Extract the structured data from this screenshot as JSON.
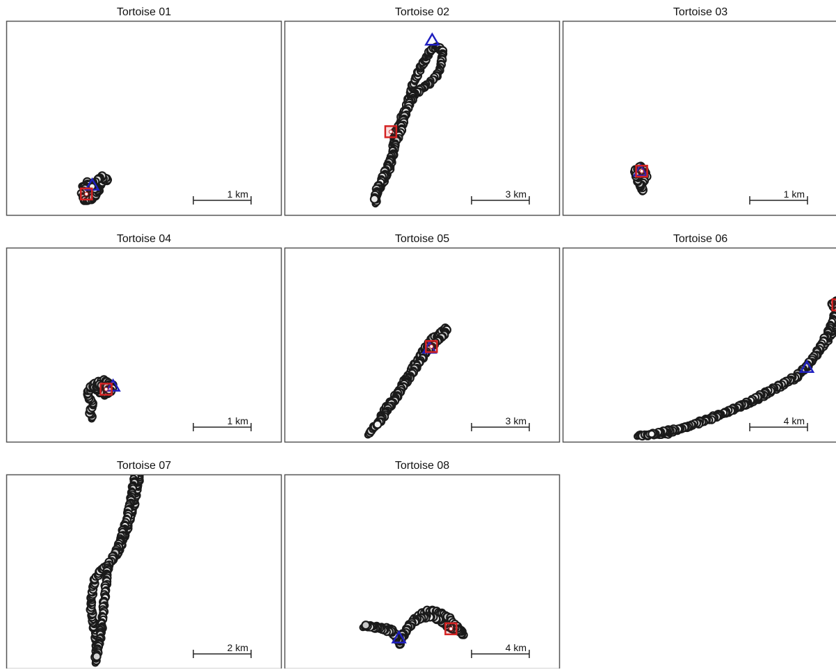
{
  "chart_data": [
    {
      "type": "scatter",
      "title": "Tortoise 01",
      "scalebar": {
        "label": "1 km",
        "km": 1
      },
      "start_marker": "triangle",
      "end_marker": "square",
      "path": [
        [
          -0.8,
          0.2
        ],
        [
          -0.7,
          0.1
        ],
        [
          -0.6,
          0.05
        ],
        [
          -0.5,
          0.12
        ],
        [
          -0.6,
          0.2
        ],
        [
          -0.72,
          0.26
        ],
        [
          -0.65,
          0.15
        ],
        [
          -0.55,
          0.1
        ],
        [
          -0.45,
          0.25
        ],
        [
          -0.35,
          0.3
        ],
        [
          -0.45,
          0.35
        ],
        [
          -0.6,
          0.25
        ],
        [
          -0.72,
          0.15
        ],
        [
          -0.8,
          0.05
        ],
        [
          -0.78,
          -0.05
        ],
        [
          -0.68,
          -0.08
        ],
        [
          -0.58,
          0.0
        ],
        [
          -0.5,
          0.1
        ],
        [
          -0.62,
          0.18
        ]
      ],
      "start": [
        -0.62,
        0.2
      ],
      "end": [
        -0.72,
        0.05
      ]
    },
    {
      "type": "scatter",
      "title": "Tortoise 02",
      "scalebar": {
        "label": "3 km",
        "km": 3
      },
      "start_marker": "triangle",
      "end_marker": "square",
      "path": [
        [
          0.1,
          0.3
        ],
        [
          0.2,
          0.8
        ],
        [
          0.45,
          1.3
        ],
        [
          0.7,
          1.8
        ],
        [
          0.9,
          2.3
        ],
        [
          1.0,
          2.8
        ],
        [
          1.05,
          3.3
        ],
        [
          1.1,
          3.8
        ],
        [
          1.3,
          4.3
        ],
        [
          1.5,
          4.8
        ],
        [
          1.7,
          5.3
        ],
        [
          1.85,
          5.8
        ],
        [
          2.0,
          6.3
        ],
        [
          2.2,
          6.8
        ],
        [
          2.4,
          7.2
        ],
        [
          2.6,
          7.6
        ],
        [
          2.8,
          7.95
        ],
        [
          3.0,
          8.2
        ],
        [
          3.2,
          8.4
        ],
        [
          3.45,
          8.35
        ],
        [
          3.6,
          8.1
        ],
        [
          3.55,
          7.7
        ],
        [
          3.45,
          7.3
        ],
        [
          3.3,
          6.9
        ],
        [
          3.0,
          6.6
        ],
        [
          2.6,
          6.3
        ],
        [
          2.1,
          5.9
        ],
        [
          1.8,
          5.3
        ],
        [
          1.6,
          4.7
        ],
        [
          1.45,
          4.1
        ],
        [
          1.2,
          3.5
        ],
        [
          0.9,
          2.6
        ],
        [
          0.5,
          1.7
        ],
        [
          0.2,
          1.0
        ],
        [
          0.05,
          0.5
        ]
      ],
      "start": [
        3.05,
        8.75
      ],
      "end": [
        0.9,
        4.0
      ]
    },
    {
      "type": "scatter",
      "title": "Tortoise 03",
      "scalebar": {
        "label": "1 km",
        "km": 1
      },
      "start_marker": "triangle",
      "end_marker": "square",
      "path": [
        [
          -0.88,
          0.4
        ],
        [
          -0.82,
          0.45
        ],
        [
          -0.75,
          0.38
        ],
        [
          -0.72,
          0.28
        ],
        [
          -0.8,
          0.22
        ],
        [
          -0.88,
          0.28
        ],
        [
          -0.92,
          0.36
        ],
        [
          -0.85,
          0.42
        ],
        [
          -0.78,
          0.32
        ],
        [
          -0.76,
          0.2
        ],
        [
          -0.8,
          0.1
        ],
        [
          -0.78,
          0.02
        ],
        [
          -0.84,
          0.14
        ],
        [
          -0.9,
          0.3
        ]
      ],
      "start": [
        -0.82,
        0.36
      ],
      "end": [
        -0.8,
        0.36
      ]
    },
    {
      "type": "scatter",
      "title": "Tortoise 04",
      "scalebar": {
        "label": "1 km",
        "km": 1
      },
      "start_marker": "triangle",
      "end_marker": "square",
      "path": [
        [
          -1.05,
          0.0
        ],
        [
          -1.08,
          0.12
        ],
        [
          -1.02,
          0.25
        ],
        [
          -1.1,
          0.35
        ],
        [
          -1.12,
          0.45
        ],
        [
          -1.05,
          0.55
        ],
        [
          -0.95,
          0.62
        ],
        [
          -0.85,
          0.65
        ],
        [
          -0.75,
          0.62
        ],
        [
          -0.68,
          0.55
        ],
        [
          -0.72,
          0.45
        ],
        [
          -0.82,
          0.4
        ],
        [
          -0.92,
          0.45
        ],
        [
          -1.0,
          0.52
        ],
        [
          -0.95,
          0.58
        ],
        [
          -0.8,
          0.55
        ],
        [
          -0.75,
          0.48
        ]
      ],
      "start": [
        -0.68,
        0.55
      ],
      "end": [
        -0.8,
        0.5
      ]
    },
    {
      "type": "scatter",
      "title": "Tortoise 05",
      "scalebar": {
        "label": "3 km",
        "km": 3
      },
      "start_marker": "triangle",
      "end_marker": "square",
      "path": [
        [
          0.0,
          0.0
        ],
        [
          0.3,
          0.3
        ],
        [
          0.6,
          0.7
        ],
        [
          0.8,
          1.1
        ],
        [
          1.0,
          1.4
        ],
        [
          1.3,
          1.8
        ],
        [
          1.6,
          2.2
        ],
        [
          1.8,
          2.6
        ],
        [
          2.0,
          2.9
        ],
        [
          2.2,
          3.2
        ],
        [
          2.4,
          3.6
        ],
        [
          2.6,
          3.9
        ],
        [
          2.8,
          4.2
        ],
        [
          3.0,
          4.5
        ],
        [
          3.2,
          4.8
        ],
        [
          3.4,
          5.0
        ],
        [
          3.6,
          5.1
        ],
        [
          3.8,
          5.3
        ],
        [
          4.0,
          5.5
        ],
        [
          4.1,
          5.4
        ],
        [
          3.9,
          5.1
        ],
        [
          3.6,
          4.8
        ],
        [
          3.3,
          4.5
        ],
        [
          3.0,
          4.2
        ],
        [
          2.6,
          3.6
        ],
        [
          2.2,
          3.0
        ],
        [
          1.8,
          2.4
        ],
        [
          1.4,
          1.8
        ],
        [
          1.0,
          1.2
        ],
        [
          0.5,
          0.5
        ]
      ],
      "start": [
        3.2,
        4.45
      ],
      "end": [
        3.3,
        4.55
      ]
    },
    {
      "type": "scatter",
      "title": "Tortoise 06",
      "scalebar": {
        "label": "4 km",
        "km": 4
      },
      "start_marker": "triangle",
      "end_marker": "square",
      "path": [
        [
          -1.0,
          0.0
        ],
        [
          0.0,
          0.05
        ],
        [
          1.0,
          0.1
        ],
        [
          2.0,
          0.45
        ],
        [
          3.0,
          0.8
        ],
        [
          4.0,
          1.2
        ],
        [
          5.0,
          1.55
        ],
        [
          6.0,
          1.95
        ],
        [
          7.0,
          2.35
        ],
        [
          8.0,
          2.9
        ],
        [
          9.0,
          3.45
        ],
        [
          10.0,
          4.0
        ],
        [
          10.8,
          4.8
        ],
        [
          11.5,
          5.7
        ],
        [
          12.2,
          6.6
        ],
        [
          12.6,
          7.3
        ],
        [
          12.8,
          7.7
        ],
        [
          12.9,
          8.2
        ],
        [
          12.8,
          8.7
        ],
        [
          12.5,
          9.1
        ],
        [
          12.8,
          9.4
        ],
        [
          12.9,
          8.9
        ],
        [
          12.6,
          8.1
        ],
        [
          12.1,
          6.9
        ],
        [
          11.2,
          5.3
        ],
        [
          10.0,
          4.1
        ],
        [
          8.0,
          3.0
        ],
        [
          6.0,
          2.0
        ],
        [
          4.0,
          1.1
        ],
        [
          2.0,
          0.5
        ],
        [
          0.0,
          0.1
        ]
      ],
      "start": [
        10.75,
        4.7
      ],
      "end": [
        12.9,
        9.05
      ]
    },
    {
      "type": "scatter",
      "title": "Tortoise 07",
      "scalebar": {
        "label": "2 km",
        "km": 2
      },
      "start_marker": "triangle",
      "end_marker": "square",
      "path": [
        [
          0.0,
          0.0
        ],
        [
          0.05,
          0.5
        ],
        [
          0.0,
          1.0
        ],
        [
          -0.1,
          1.5
        ],
        [
          -0.15,
          2.0
        ],
        [
          -0.1,
          2.5
        ],
        [
          0.0,
          2.9
        ],
        [
          0.2,
          3.2
        ],
        [
          0.5,
          3.4
        ],
        [
          0.8,
          3.8
        ],
        [
          0.95,
          4.2
        ],
        [
          1.1,
          4.6
        ],
        [
          1.2,
          5.0
        ],
        [
          1.35,
          5.4
        ],
        [
          1.4,
          5.8
        ],
        [
          1.5,
          6.2
        ],
        [
          1.55,
          6.6
        ],
        [
          1.5,
          7.0
        ],
        [
          1.6,
          7.4
        ],
        [
          1.65,
          7.8
        ],
        [
          1.6,
          8.2
        ],
        [
          1.55,
          8.6
        ],
        [
          1.7,
          9.0
        ],
        [
          1.65,
          9.4
        ],
        [
          1.6,
          9.8
        ],
        [
          1.8,
          9.95
        ],
        [
          1.9,
          9.8
        ],
        [
          1.7,
          9.2
        ],
        [
          1.55,
          8.0
        ],
        [
          1.45,
          7.0
        ],
        [
          1.3,
          6.0
        ],
        [
          1.1,
          5.0
        ],
        [
          0.8,
          4.0
        ],
        [
          0.45,
          3.35
        ],
        [
          0.3,
          2.0
        ],
        [
          0.2,
          1.0
        ],
        [
          0.05,
          0.2
        ]
      ],
      "start": [
        1.7,
        9.65
      ],
      "end": [
        1.92,
        9.85
      ]
    },
    {
      "type": "scatter",
      "title": "Tortoise 08",
      "scalebar": {
        "label": "4 km",
        "km": 4
      },
      "start_marker": "triangle",
      "end_marker": "square",
      "path": [
        [
          -3.0,
          0.3
        ],
        [
          -2.5,
          0.35
        ],
        [
          -2.0,
          0.3
        ],
        [
          -1.5,
          0.2
        ],
        [
          -1.0,
          0.15
        ],
        [
          -0.8,
          -0.2
        ],
        [
          -0.6,
          -0.6
        ],
        [
          -0.5,
          -1.0
        ],
        [
          -0.3,
          -0.6
        ],
        [
          -0.1,
          -0.2
        ],
        [
          0.2,
          0.4
        ],
        [
          0.6,
          0.9
        ],
        [
          1.0,
          1.2
        ],
        [
          1.5,
          1.4
        ],
        [
          2.0,
          1.4
        ],
        [
          2.5,
          1.2
        ],
        [
          3.0,
          0.9
        ],
        [
          3.4,
          0.4
        ],
        [
          3.8,
          0.0
        ],
        [
          4.0,
          -0.3
        ],
        [
          3.6,
          0.1
        ],
        [
          3.0,
          0.2
        ],
        [
          2.5,
          0.6
        ],
        [
          2.0,
          0.9
        ],
        [
          1.5,
          1.0
        ],
        [
          1.0,
          0.9
        ],
        [
          0.5,
          0.6
        ],
        [
          0.0,
          0.0
        ],
        [
          -0.5,
          -0.6
        ],
        [
          -1.0,
          -0.1
        ],
        [
          -2.0,
          0.2
        ],
        [
          -2.8,
          0.4
        ]
      ],
      "start": [
        -0.5,
        -0.5
      ],
      "end": [
        3.1,
        0.15
      ]
    }
  ]
}
